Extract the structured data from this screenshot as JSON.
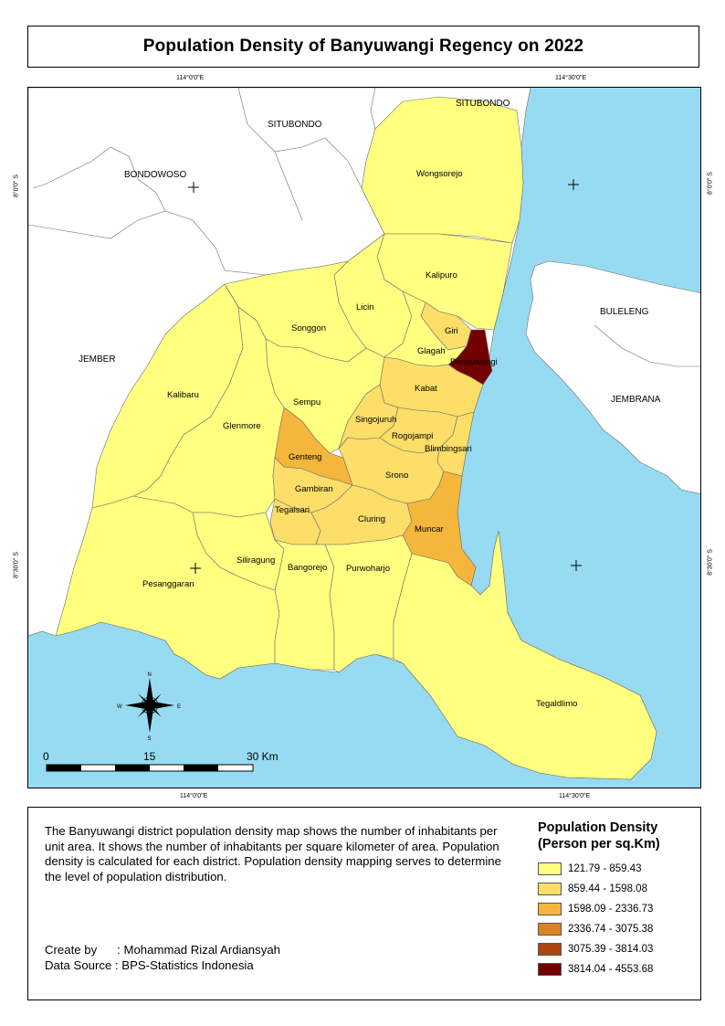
{
  "title": "Population Density of Banyuwangi Regency on 2022",
  "coordinates": {
    "top_left": "114°0'0\"E",
    "top_right": "114°30'0\"E",
    "bottom_left": "114°0'0\"E",
    "bottom_right": "114°30'0\"E",
    "left_upper": "8°0'0\" S",
    "left_lower": "8°30'0\" S",
    "right_upper": "8°0'0\" S",
    "right_lower": "8°30'0\" S"
  },
  "neighbors": {
    "situbondo_west": "SITUBONDO",
    "situbondo_east": "SITUBONDO",
    "bondowoso": "BONDOWOSO",
    "jember": "JEMBER",
    "buleleng": "BULELENG",
    "jembrana": "JEMBRANA"
  },
  "districts": {
    "wongsorejo": "Wongsorejo",
    "kalipuro": "Kalipuro",
    "licin": "Licin",
    "giri": "Giri",
    "glagah": "Glagah",
    "banyuwangi": "Banyuwangi",
    "songgon": "Songgon",
    "kalibaru": "Kalibaru",
    "sempu": "Sempu",
    "kabat": "Kabat",
    "singojuruh": "Singojuruh",
    "rogojampi": "Rogojampi",
    "blimbingsari": "Blimbingsari",
    "glenmore": "Glenmore",
    "genteng": "Genteng",
    "srono": "Srono",
    "gambiran": "Gambiran",
    "tegalsari": "Tegalsari",
    "cluring": "Cluring",
    "muncar": "Muncar",
    "siliragung": "Siliragung",
    "pesanggaran": "Pesanggaran",
    "bangorejo": "Bangorejo",
    "purwoharjo": "Purwoharjo",
    "tegaldlimo": "Tegaldlimo"
  },
  "compass": {
    "n": "N",
    "s": "S",
    "e": "E",
    "w": "W"
  },
  "scale_bar": {
    "start": "0",
    "mid": "15",
    "end": "30 Km"
  },
  "description": "The Banyuwangi district population density map shows the number of inhabitants per unit area. It shows the number of inhabitants per square kilometer of area. Population density is calculated for each district. Population density mapping serves to determine the level of population distribution.",
  "credit": {
    "created_by_label": "Create by      : Mohammad Rizal Ardiansyah",
    "data_source_label": "Data Source : BPS-Statistics Indonesia"
  },
  "legend": {
    "title_line1": "Population Density",
    "title_line2": "(Person per sq.Km)",
    "classes": [
      {
        "label": "121.79 - 859.43",
        "color": "#ffff80"
      },
      {
        "label": "859.44 - 1598.08",
        "color": "#fcde68"
      },
      {
        "label": "1598.09 - 2336.73",
        "color": "#f5b63c"
      },
      {
        "label": "2336.74 - 3075.38",
        "color": "#d98424"
      },
      {
        "label": "3075.39 - 3814.03",
        "color": "#a84712"
      },
      {
        "label": "3814.04 - 4553.68",
        "color": "#730000"
      }
    ]
  },
  "colors": {
    "sea": "#97dbf2",
    "land_outside": "#ffffff",
    "boundary": "#6e6e6e"
  }
}
